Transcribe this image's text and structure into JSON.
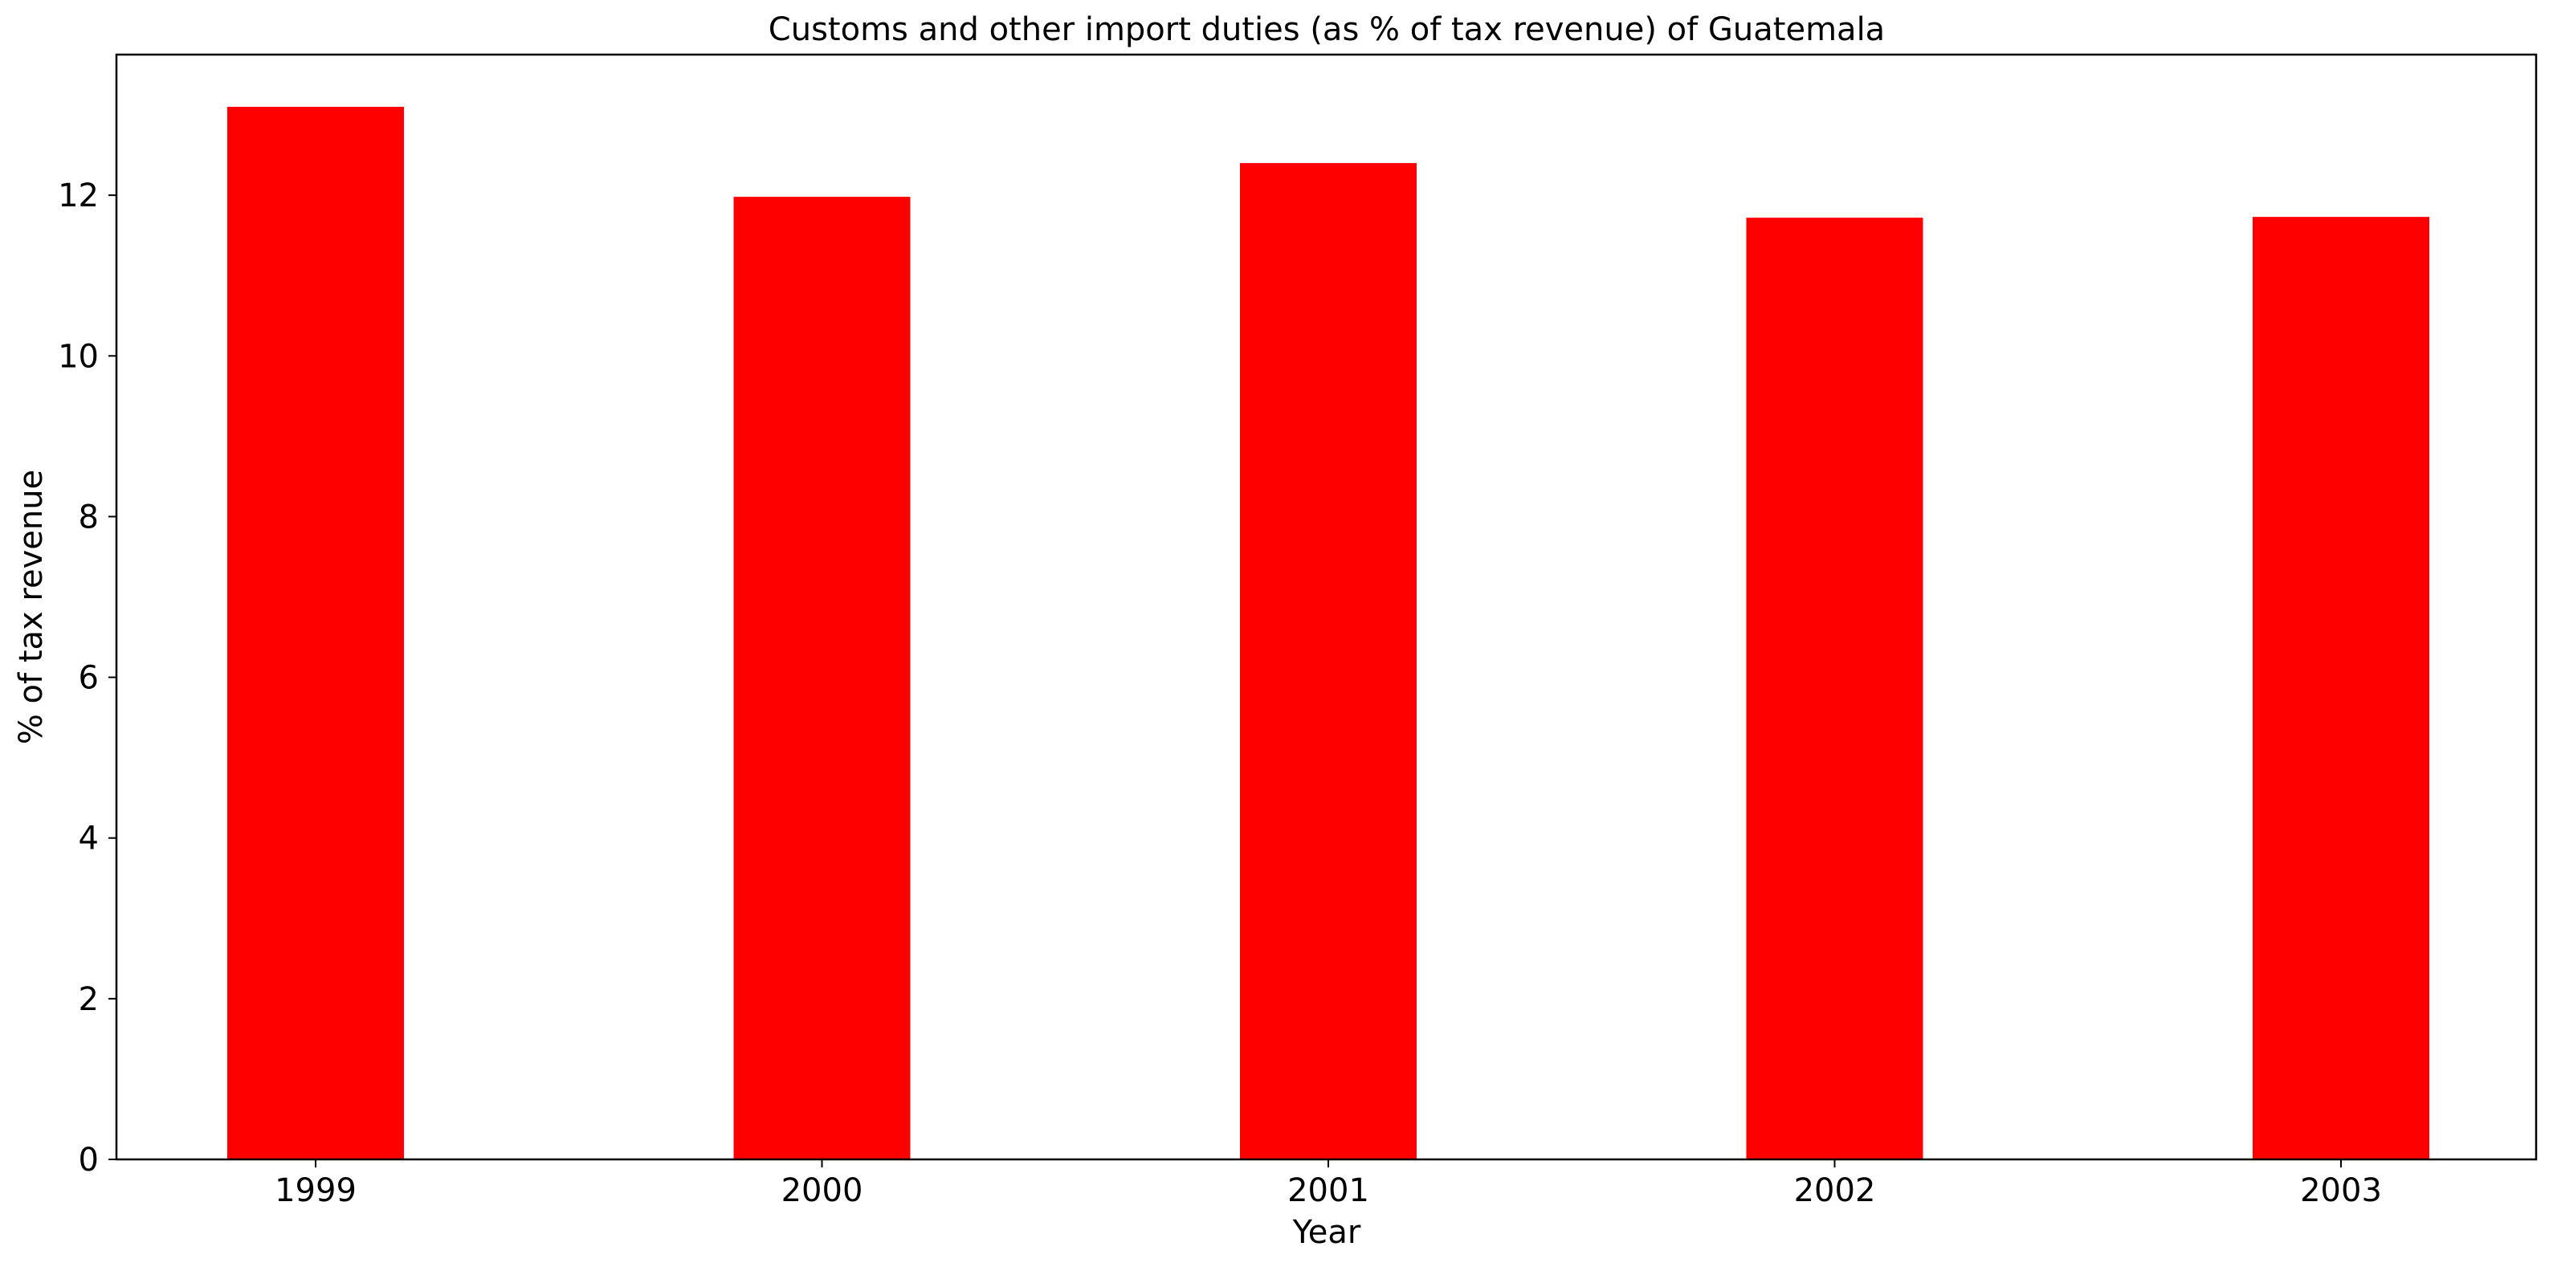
{
  "chart_data": {
    "type": "bar",
    "title": "Customs and other import duties (as % of tax revenue) of Guatemala",
    "xlabel": "Year",
    "ylabel": "% of tax revenue",
    "categories": [
      "1999",
      "2000",
      "2001",
      "2002",
      "2003"
    ],
    "values": [
      13.1,
      11.98,
      12.4,
      11.72,
      11.73
    ],
    "ylim": [
      0,
      13.75
    ],
    "yticks": [
      0,
      2,
      4,
      6,
      8,
      10,
      12
    ],
    "grid": false,
    "legend": "none",
    "colors": {
      "bar": "#ff0000",
      "axis": "#000000",
      "background": "#ffffff"
    }
  }
}
